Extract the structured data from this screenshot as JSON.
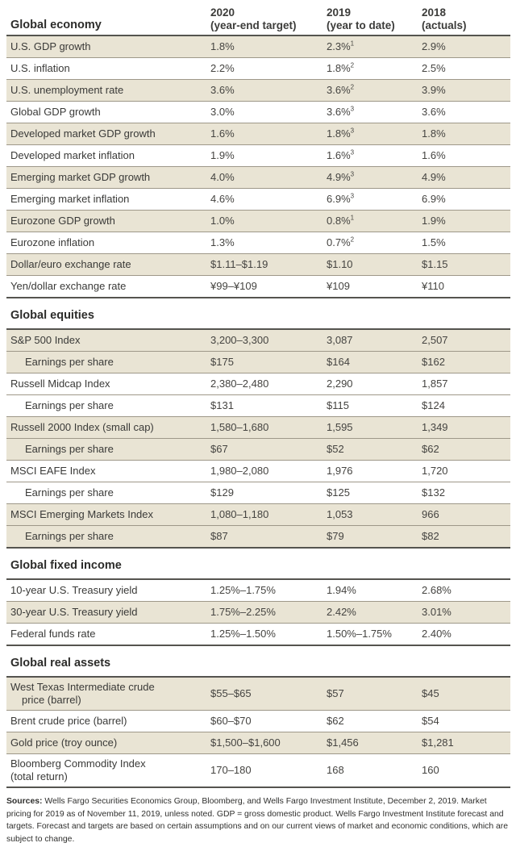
{
  "colors": {
    "row_shade": "#e9e4d4",
    "rule_dark": "#55544f",
    "rule_light": "#9e9889",
    "text": "#3a3a38"
  },
  "table": {
    "header": {
      "cols": [
        {
          "year": "2020",
          "sub": "(year-end target)"
        },
        {
          "year": "2019",
          "sub": "(year to date)"
        },
        {
          "year": "2018",
          "sub": "(actuals)"
        }
      ]
    },
    "sections": [
      {
        "title": "Global economy",
        "rows": [
          {
            "label": "U.S. GDP growth",
            "shaded": true,
            "values": [
              {
                "text": "1.8%"
              },
              {
                "text": "2.3%",
                "sup": "1"
              },
              {
                "text": "2.9%"
              }
            ]
          },
          {
            "label": "U.S. inflation",
            "shaded": false,
            "values": [
              {
                "text": "2.2%"
              },
              {
                "text": "1.8%",
                "sup": "2"
              },
              {
                "text": "2.5%"
              }
            ]
          },
          {
            "label": "U.S. unemployment rate",
            "shaded": true,
            "values": [
              {
                "text": "3.6%"
              },
              {
                "text": "3.6%",
                "sup": "2"
              },
              {
                "text": "3.9%"
              }
            ]
          },
          {
            "label": "Global GDP growth",
            "shaded": false,
            "values": [
              {
                "text": "3.0%"
              },
              {
                "text": "3.6%",
                "sup": "3"
              },
              {
                "text": "3.6%"
              }
            ]
          },
          {
            "label": "Developed market GDP growth",
            "shaded": true,
            "values": [
              {
                "text": "1.6%"
              },
              {
                "text": "1.8%",
                "sup": "3"
              },
              {
                "text": "1.8%"
              }
            ]
          },
          {
            "label": "Developed market inflation",
            "shaded": false,
            "values": [
              {
                "text": "1.9%"
              },
              {
                "text": "1.6%",
                "sup": "3"
              },
              {
                "text": "1.6%"
              }
            ]
          },
          {
            "label": "Emerging market GDP growth",
            "shaded": true,
            "values": [
              {
                "text": "4.0%"
              },
              {
                "text": "4.9%",
                "sup": "3"
              },
              {
                "text": "4.9%"
              }
            ]
          },
          {
            "label": "Emerging market inflation",
            "shaded": false,
            "values": [
              {
                "text": "4.6%"
              },
              {
                "text": "6.9%",
                "sup": "3"
              },
              {
                "text": "6.9%"
              }
            ]
          },
          {
            "label": "Eurozone GDP growth",
            "shaded": true,
            "values": [
              {
                "text": "1.0%"
              },
              {
                "text": "0.8%",
                "sup": "1"
              },
              {
                "text": "1.9%"
              }
            ]
          },
          {
            "label": "Eurozone inflation",
            "shaded": false,
            "values": [
              {
                "text": "1.3%"
              },
              {
                "text": "0.7%",
                "sup": "2"
              },
              {
                "text": "1.5%"
              }
            ]
          },
          {
            "label": "Dollar/euro exchange rate",
            "shaded": true,
            "values": [
              {
                "text": "$1.11–$1.19"
              },
              {
                "text": "$1.10"
              },
              {
                "text": "$1.15"
              }
            ]
          },
          {
            "label": "Yen/dollar exchange rate",
            "shaded": false,
            "values": [
              {
                "text": "¥99–¥109"
              },
              {
                "text": "¥109"
              },
              {
                "text": "¥110"
              }
            ]
          }
        ]
      },
      {
        "title": "Global equities",
        "rows": [
          {
            "label": "S&P 500 Index",
            "shaded": true,
            "values": [
              {
                "text": "3,200–3,300"
              },
              {
                "text": "3,087"
              },
              {
                "text": "2,507"
              }
            ]
          },
          {
            "label": "Earnings per share",
            "indent": true,
            "shaded": true,
            "values": [
              {
                "text": "$175"
              },
              {
                "text": "$164"
              },
              {
                "text": "$162"
              }
            ]
          },
          {
            "label": "Russell Midcap Index",
            "shaded": false,
            "values": [
              {
                "text": "2,380–2,480"
              },
              {
                "text": "2,290"
              },
              {
                "text": "1,857"
              }
            ]
          },
          {
            "label": "Earnings per share",
            "indent": true,
            "shaded": false,
            "values": [
              {
                "text": "$131"
              },
              {
                "text": "$115"
              },
              {
                "text": "$124"
              }
            ]
          },
          {
            "label": "Russell 2000 Index (small cap)",
            "shaded": true,
            "values": [
              {
                "text": "1,580–1,680"
              },
              {
                "text": "1,595"
              },
              {
                "text": "1,349"
              }
            ]
          },
          {
            "label": "Earnings per share",
            "indent": true,
            "shaded": true,
            "values": [
              {
                "text": "$67"
              },
              {
                "text": "$52"
              },
              {
                "text": "$62"
              }
            ]
          },
          {
            "label": "MSCI EAFE Index",
            "shaded": false,
            "values": [
              {
                "text": "1,980–2,080"
              },
              {
                "text": "1,976"
              },
              {
                "text": "1,720"
              }
            ]
          },
          {
            "label": "Earnings per share",
            "indent": true,
            "shaded": false,
            "values": [
              {
                "text": "$129"
              },
              {
                "text": "$125"
              },
              {
                "text": "$132"
              }
            ]
          },
          {
            "label": "MSCI Emerging Markets Index",
            "shaded": true,
            "values": [
              {
                "text": "1,080–1,180"
              },
              {
                "text": "1,053"
              },
              {
                "text": "966"
              }
            ]
          },
          {
            "label": "Earnings per share",
            "indent": true,
            "shaded": true,
            "values": [
              {
                "text": "$87"
              },
              {
                "text": "$79"
              },
              {
                "text": "$82"
              }
            ]
          }
        ]
      },
      {
        "title": "Global fixed income",
        "rows": [
          {
            "label": "10-year U.S. Treasury yield",
            "shaded": false,
            "values": [
              {
                "text": "1.25%–1.75%"
              },
              {
                "text": "1.94%"
              },
              {
                "text": "2.68%"
              }
            ]
          },
          {
            "label": "30-year U.S. Treasury yield",
            "shaded": true,
            "values": [
              {
                "text": "1.75%–2.25%"
              },
              {
                "text": "2.42%"
              },
              {
                "text": "3.01%"
              }
            ]
          },
          {
            "label": "Federal funds rate",
            "shaded": false,
            "values": [
              {
                "text": "1.25%–1.50%"
              },
              {
                "text": "1.50%–1.75%"
              },
              {
                "text": "2.40%"
              }
            ]
          }
        ]
      },
      {
        "title": "Global real assets",
        "rows": [
          {
            "label": "West Texas Intermediate crude",
            "label2": "price (barrel)",
            "shaded": true,
            "values": [
              {
                "text": "$55–$65"
              },
              {
                "text": "$57"
              },
              {
                "text": "$45"
              }
            ]
          },
          {
            "label": "Brent crude price (barrel)",
            "shaded": false,
            "values": [
              {
                "text": "$60–$70"
              },
              {
                "text": "$62"
              },
              {
                "text": "$54"
              }
            ]
          },
          {
            "label": "Gold price (troy ounce)",
            "shaded": true,
            "values": [
              {
                "text": "$1,500–$1,600"
              },
              {
                "text": "$1,456"
              },
              {
                "text": "$1,281"
              }
            ]
          },
          {
            "label": "Bloomberg Commodity Index",
            "label2": "(total return)",
            "label2_noindent": true,
            "shaded": false,
            "values": [
              {
                "text": "170–180"
              },
              {
                "text": "168"
              },
              {
                "text": "160"
              }
            ]
          }
        ]
      }
    ]
  },
  "footer": {
    "label": "Sources:",
    "text": "Wells Fargo Securities Economics Group, Bloomberg, and Wells Fargo Investment Institute, December 2, 2019. Market pricing for 2019 as of November 11, 2019, unless noted. GDP = gross domestic product. Wells Fargo Investment Institute forecast and targets. Forecast and targets are based on certain assumptions and on our current views of market and economic conditions, which are subject to change."
  }
}
